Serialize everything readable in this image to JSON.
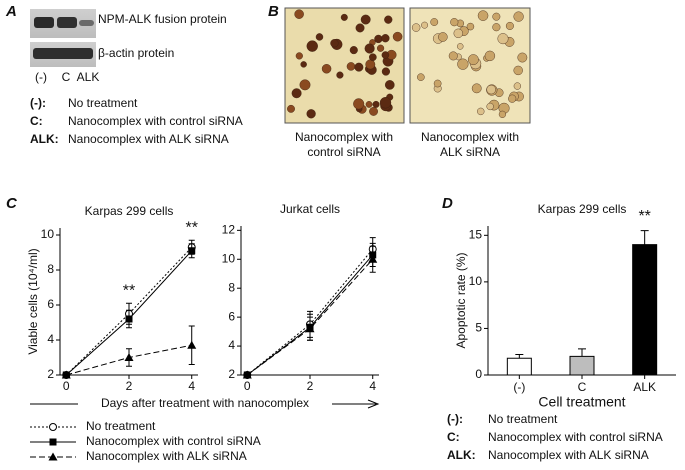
{
  "panel_a": {
    "label": "A",
    "blot_labels": [
      "NPM-ALK fusion protein",
      "β-actin protein"
    ],
    "lanes": [
      "(-)",
      "C",
      "ALK"
    ],
    "key": [
      {
        "term": "(-):",
        "text": "No treatment"
      },
      {
        "term": "C:",
        "text": "Nanocomplex with control siRNA"
      },
      {
        "term": "ALK:",
        "text": "Nanocomplex with ALK siRNA"
      }
    ]
  },
  "panel_b": {
    "label": "B",
    "captions": [
      [
        "Nanocomplex with",
        "control siRNA"
      ],
      [
        "Nanocomplex with",
        "ALK siRNA"
      ]
    ]
  },
  "panel_c": {
    "label": "C",
    "xlabel": "Days after treatment with nanocomplex"
  },
  "panel_d": {
    "label": "D",
    "key": [
      {
        "term": "(-):",
        "text": "No treatment"
      },
      {
        "term": "C:",
        "text": "Nanocomplex with control siRNA"
      },
      {
        "term": "ALK:",
        "text": "Nanocomplex with ALK siRNA"
      }
    ]
  },
  "chart_data": [
    {
      "type": "line",
      "title": "Karpas 299 cells",
      "ylabel": "Viable cells (10⁴/ml)",
      "x": [
        0,
        2,
        4
      ],
      "xlim": [
        -0.2,
        4.2
      ],
      "xticks": [
        0,
        2,
        4
      ],
      "ylim": [
        2,
        10.4
      ],
      "yticks": [
        2,
        4,
        6,
        8,
        10
      ],
      "series": [
        {
          "name": "No treatment",
          "dash": "2,2",
          "marker": "circle",
          "values": [
            2,
            5.5,
            9.3
          ],
          "errors": [
            0,
            0.6,
            0.4
          ]
        },
        {
          "name": "Nanocomplex with control siRNA",
          "dash": "none",
          "marker": "square",
          "values": [
            2,
            5.2,
            9.1
          ],
          "errors": [
            0,
            0.5,
            0.4
          ]
        },
        {
          "name": "Nanocomplex with ALK siRNA",
          "dash": "6,3",
          "marker": "triangle",
          "values": [
            2,
            3.0,
            3.7
          ],
          "errors": [
            0,
            0.5,
            1.1
          ]
        }
      ],
      "annotations": [
        {
          "text": "**",
          "x": 2
        },
        {
          "text": "**",
          "x": 4
        }
      ]
    },
    {
      "type": "line",
      "title": "Jurkat cells",
      "x": [
        0,
        2,
        4
      ],
      "xlim": [
        -0.2,
        4.2
      ],
      "xticks": [
        0,
        2,
        4
      ],
      "ylim": [
        2,
        12.3
      ],
      "yticks": [
        2,
        4,
        6,
        8,
        10,
        12
      ],
      "series": [
        {
          "name": "No treatment",
          "dash": "2,2",
          "marker": "circle",
          "values": [
            2,
            5.5,
            10.7
          ],
          "errors": [
            0,
            0.9,
            0.8
          ]
        },
        {
          "name": "Nanocomplex with control siRNA",
          "dash": "none",
          "marker": "square",
          "values": [
            2,
            5.3,
            10.3
          ],
          "errors": [
            0,
            0.9,
            0.8
          ]
        },
        {
          "name": "Nanocomplex with ALK siRNA",
          "dash": "6,3",
          "marker": "triangle",
          "values": [
            2,
            5.2,
            10.0
          ],
          "errors": [
            0,
            0.8,
            0.9
          ]
        }
      ]
    },
    {
      "type": "bar",
      "title": "Karpas 299 cells",
      "ylabel": "Apoptotic rate (%)",
      "xlabel": "Cell treatment",
      "categories": [
        "(-)",
        "C",
        "ALK"
      ],
      "values": [
        1.8,
        2.0,
        14.0
      ],
      "errors": [
        0.4,
        0.8,
        1.5
      ],
      "colors": [
        "#ffffff",
        "#bdbdbd",
        "#000000"
      ],
      "ylim": [
        0,
        16
      ],
      "yticks": [
        0,
        5,
        10,
        15
      ],
      "annotations": [
        {
          "text": "**",
          "category": "ALK"
        }
      ]
    }
  ]
}
